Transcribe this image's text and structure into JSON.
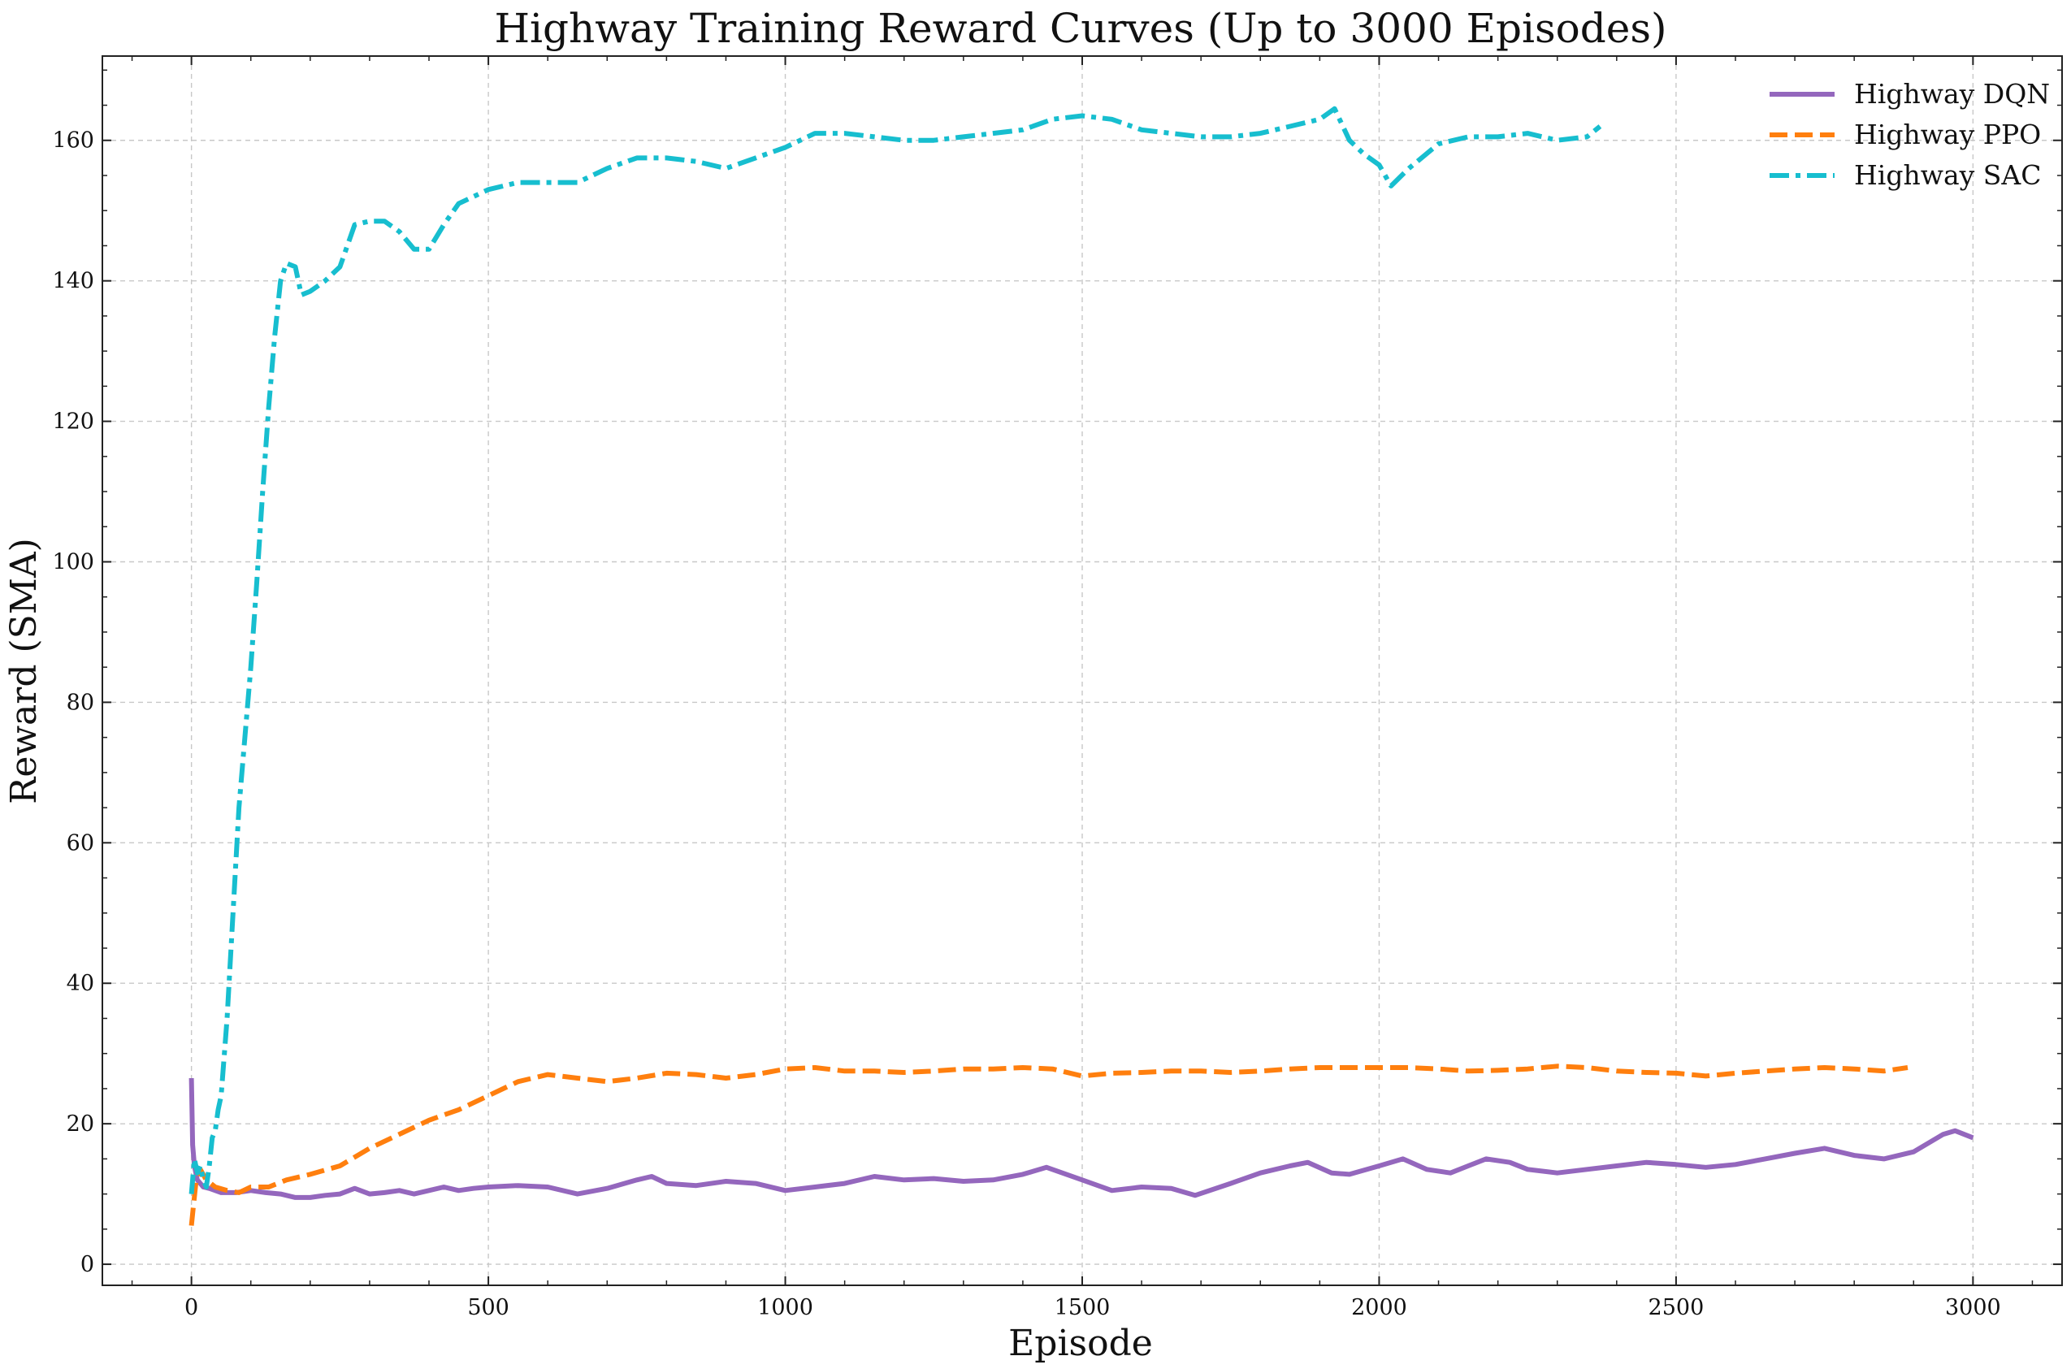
{
  "chart_data": {
    "type": "line",
    "title": "Highway Training Reward Curves (Up to 3000 Episodes)",
    "xlabel": "Episode",
    "ylabel": "Reward (SMA)",
    "xlim": [
      -150,
      3150
    ],
    "ylim": [
      -3,
      172
    ],
    "xticks": [
      0,
      500,
      1000,
      1500,
      2000,
      2500,
      3000
    ],
    "xtick_labels": [
      "0",
      "500",
      "1000",
      "1500",
      "2000",
      "2500",
      "3000"
    ],
    "yticks": [
      0,
      20,
      40,
      60,
      80,
      100,
      120,
      140,
      160
    ],
    "ytick_labels": [
      "0",
      "20",
      "40",
      "60",
      "80",
      "100",
      "120",
      "140",
      "160"
    ],
    "grid": true,
    "legend_position": "top-right",
    "series": [
      {
        "name": "Highway DQN",
        "color": "#9467bd",
        "dash": "solid",
        "x": [
          0,
          2,
          5,
          10,
          20,
          30,
          50,
          75,
          100,
          125,
          150,
          175,
          200,
          225,
          250,
          275,
          300,
          325,
          350,
          375,
          400,
          425,
          450,
          475,
          500,
          550,
          600,
          650,
          700,
          750,
          775,
          800,
          850,
          900,
          950,
          1000,
          1050,
          1100,
          1150,
          1200,
          1250,
          1300,
          1350,
          1400,
          1440,
          1500,
          1550,
          1600,
          1650,
          1690,
          1750,
          1800,
          1850,
          1880,
          1920,
          1950,
          2000,
          2040,
          2080,
          2120,
          2150,
          2180,
          2220,
          2250,
          2300,
          2350,
          2400,
          2450,
          2500,
          2550,
          2600,
          2650,
          2700,
          2750,
          2800,
          2850,
          2900,
          2950,
          2970,
          3000
        ],
        "y": [
          26.5,
          17,
          14,
          12,
          11,
          10.8,
          10.2,
          10.2,
          10.5,
          10.2,
          10.0,
          9.5,
          9.5,
          9.8,
          10.0,
          10.8,
          10.0,
          10.2,
          10.5,
          10.0,
          10.5,
          11.0,
          10.5,
          10.8,
          11.0,
          11.2,
          11.0,
          10.0,
          10.8,
          12.0,
          12.5,
          11.5,
          11.2,
          11.8,
          11.5,
          10.5,
          11.0,
          11.5,
          12.5,
          12.0,
          12.2,
          11.8,
          12.0,
          12.8,
          13.8,
          12.0,
          10.5,
          11.0,
          10.8,
          9.8,
          11.5,
          13.0,
          14.0,
          14.5,
          13.0,
          12.8,
          14.0,
          15.0,
          13.5,
          13.0,
          14.0,
          15.0,
          14.5,
          13.5,
          13.0,
          13.5,
          14.0,
          14.5,
          14.2,
          13.8,
          14.2,
          15.0,
          15.8,
          16.5,
          15.5,
          15.0,
          16.0,
          18.5,
          19.0,
          18.0
        ]
      },
      {
        "name": "Highway PPO",
        "color": "#ff7f0e",
        "dash": "dashed",
        "x": [
          0,
          3,
          8,
          15,
          25,
          40,
          60,
          80,
          100,
          130,
          160,
          200,
          250,
          300,
          350,
          400,
          450,
          500,
          550,
          600,
          650,
          700,
          750,
          800,
          850,
          900,
          950,
          1000,
          1050,
          1100,
          1150,
          1200,
          1250,
          1300,
          1350,
          1400,
          1450,
          1500,
          1550,
          1600,
          1650,
          1700,
          1750,
          1800,
          1850,
          1900,
          1950,
          2000,
          2050,
          2100,
          2150,
          2200,
          2250,
          2300,
          2350,
          2400,
          2450,
          2500,
          2550,
          2600,
          2650,
          2700,
          2750,
          2800,
          2850,
          2890
        ],
        "y": [
          5.5,
          8,
          12,
          13.5,
          12,
          11,
          10.5,
          10.2,
          11.0,
          11.0,
          12.0,
          12.8,
          14.0,
          16.5,
          18.5,
          20.5,
          22.0,
          24.0,
          26.0,
          27.0,
          26.5,
          26.0,
          26.5,
          27.2,
          27.0,
          26.5,
          27.0,
          27.8,
          28.0,
          27.5,
          27.5,
          27.3,
          27.5,
          27.8,
          27.8,
          28.0,
          27.8,
          26.8,
          27.2,
          27.3,
          27.5,
          27.5,
          27.3,
          27.5,
          27.8,
          28.0,
          28.0,
          28.0,
          28.0,
          27.8,
          27.5,
          27.6,
          27.8,
          28.2,
          28.0,
          27.5,
          27.3,
          27.2,
          26.8,
          27.2,
          27.5,
          27.8,
          28.0,
          27.8,
          27.5,
          28.0
        ]
      },
      {
        "name": "Highway SAC",
        "color": "#17becf",
        "dash": "dashdot",
        "x": [
          0,
          5,
          10,
          15,
          20,
          25,
          30,
          35,
          40,
          45,
          50,
          60,
          70,
          80,
          90,
          100,
          110,
          120,
          130,
          140,
          150,
          160,
          175,
          185,
          200,
          225,
          250,
          275,
          300,
          325,
          350,
          375,
          400,
          425,
          450,
          500,
          550,
          600,
          650,
          700,
          750,
          800,
          850,
          900,
          950,
          1000,
          1050,
          1100,
          1150,
          1200,
          1250,
          1300,
          1350,
          1400,
          1450,
          1500,
          1550,
          1600,
          1650,
          1700,
          1750,
          1800,
          1850,
          1900,
          1925,
          1950,
          1975,
          2000,
          2020,
          2050,
          2100,
          2150,
          2200,
          2250,
          2300,
          2350,
          2372
        ],
        "y": [
          10,
          15,
          13,
          14,
          12,
          11,
          14,
          18,
          19,
          22,
          24,
          35,
          50,
          65,
          75,
          85,
          97,
          110,
          122,
          132,
          140,
          142.5,
          142,
          138,
          138.5,
          140,
          142,
          148,
          148.5,
          148.5,
          147,
          144.5,
          144.5,
          148,
          151,
          153,
          154,
          154,
          154,
          156,
          157.5,
          157.5,
          157,
          156,
          157.5,
          159,
          161,
          161,
          160.5,
          160,
          160,
          160.5,
          161,
          161.5,
          163,
          163.5,
          163,
          161.5,
          161,
          160.5,
          160.5,
          161,
          162,
          163,
          164.5,
          160,
          158,
          156.5,
          153.5,
          156,
          159.5,
          160.5,
          160.5,
          161,
          160,
          160.5,
          162
        ]
      }
    ]
  }
}
